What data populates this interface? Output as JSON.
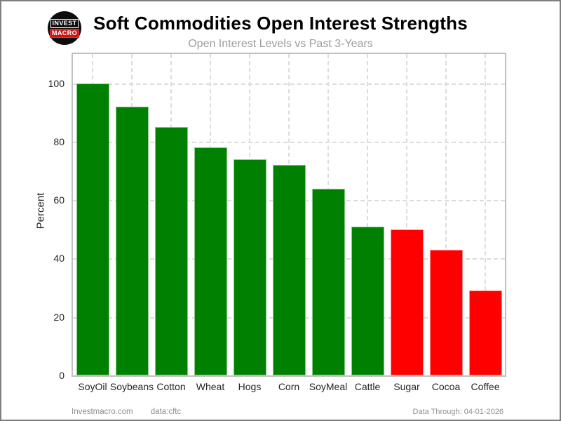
{
  "header": {
    "title": "Soft Commodities Open Interest Strengths",
    "subtitle": "Open Interest Levels vs Past 3-Years",
    "logo": {
      "line1": "INVEST",
      "line2": "MACRO"
    }
  },
  "chart_data": {
    "type": "bar",
    "title": "Soft Commodities Open Interest Strengths",
    "subtitle": "Open Interest Levels vs Past 3-Years",
    "categories": [
      "SoyOil",
      "Soybeans",
      "Cotton",
      "Wheat",
      "Hogs",
      "Corn",
      "SoyMeal",
      "Cattle",
      "Sugar",
      "Cocoa",
      "Coffee"
    ],
    "values": [
      100,
      92,
      85,
      78,
      74,
      72,
      64,
      51,
      50,
      43,
      29
    ],
    "bar_colors": [
      "#008000",
      "#008000",
      "#008000",
      "#008000",
      "#008000",
      "#008000",
      "#008000",
      "#008000",
      "#ff0000",
      "#ff0000",
      "#ff0000"
    ],
    "xlabel": "",
    "ylabel": "Percent",
    "yticks": [
      0,
      20,
      40,
      60,
      80,
      100
    ],
    "ylim": [
      0,
      110
    ],
    "grid": "dashed, horizontal and vertical",
    "legend": "none",
    "strong_color": "#008000",
    "weak_color": "#ff0000"
  },
  "footer": {
    "site": "Investmacro.com",
    "source": "data:cftc",
    "data_through": "Data Through: 04-01-2026"
  },
  "colors": {
    "page_border": "#7f7f7f",
    "plot_border": "#c0c0c0",
    "gridline": "#dcdcdc",
    "title_text": "#000000",
    "subtitle_text": "#9e9e9e",
    "footer_text": "#8f8f8f"
  }
}
